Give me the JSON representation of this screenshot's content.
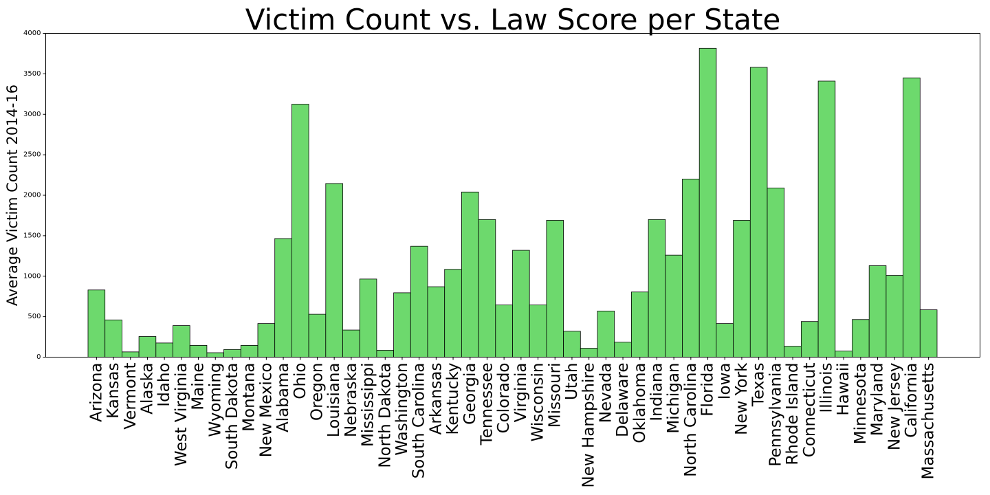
{
  "chart_data": {
    "type": "bar",
    "title": "Victim Count vs. Law Score per State",
    "xlabel": "",
    "ylabel": "Average Victim Count 2014-16",
    "ylim": [
      0,
      4000
    ],
    "yticks": [
      0,
      500,
      1000,
      1500,
      2000,
      2500,
      3000,
      3500,
      4000
    ],
    "grid": false,
    "bar_color": "#6dd96d",
    "bar_edge_color": "#000000",
    "categories": [
      "Arizona",
      "Kansas",
      "Vermont",
      "Alaska",
      "Idaho",
      "West Virginia",
      "Maine",
      "Wyoming",
      "South Dakota",
      "Montana",
      "New Mexico",
      "Alabama",
      "Ohio",
      "Oregon",
      "Louisiana",
      "Nebraska",
      "Mississippi",
      "North Dakota",
      "Washington",
      "South Carolina",
      "Arkansas",
      "Kentucky",
      "Georgia",
      "Tennessee",
      "Colorado",
      "Virginia",
      "Wisconsin",
      "Missouri",
      "Utah",
      "New Hampshire",
      "Nevada",
      "Delaware",
      "Oklahoma",
      "Indiana",
      "Michigan",
      "North Carolina",
      "Florida",
      "Iowa",
      "New York",
      "Texas",
      "Pennsylvania",
      "Rhode Island",
      "Connecticut",
      "Illinois",
      "Hawaii",
      "Minnesota",
      "Maryland",
      "New Jersey",
      "California",
      "Massachusetts"
    ],
    "values": [
      830,
      460,
      65,
      255,
      175,
      390,
      145,
      55,
      95,
      145,
      415,
      1465,
      3125,
      530,
      2145,
      335,
      965,
      85,
      795,
      1370,
      870,
      1085,
      2040,
      1700,
      645,
      1320,
      645,
      1690,
      320,
      110,
      570,
      185,
      805,
      1700,
      1260,
      2200,
      3815,
      415,
      1690,
      3580,
      2090,
      135,
      440,
      3410,
      75,
      465,
      1130,
      1010,
      3450,
      585
    ]
  }
}
